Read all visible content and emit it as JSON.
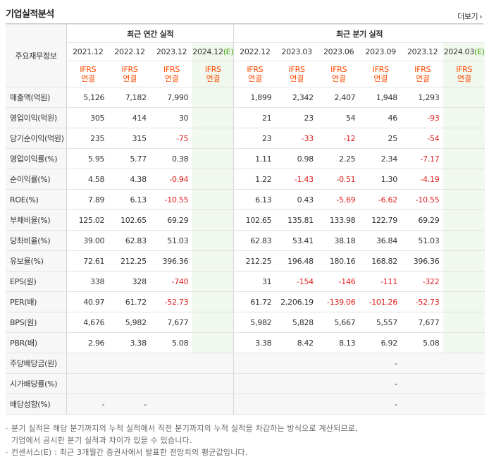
{
  "section": {
    "title": "기업실적분석",
    "more_label": "더보기"
  },
  "table": {
    "label_header": "주요재무정보",
    "annual_header": "최근 연간 실적",
    "quarterly_header": "최근 분기 실적",
    "annual_periods": [
      {
        "date": "2021.12",
        "est": ""
      },
      {
        "date": "2022.12",
        "est": ""
      },
      {
        "date": "2023.12",
        "est": ""
      },
      {
        "date": "2024.12",
        "est": "(E)"
      }
    ],
    "quarterly_periods": [
      {
        "date": "2022.12",
        "est": ""
      },
      {
        "date": "2023.03",
        "est": ""
      },
      {
        "date": "2023.06",
        "est": ""
      },
      {
        "date": "2023.09",
        "est": ""
      },
      {
        "date": "2023.12",
        "est": ""
      },
      {
        "date": "2024.03",
        "est": "(E)"
      }
    ],
    "ifrs_line1": "IFRS",
    "ifrs_line2": "연결",
    "rows": [
      {
        "label": "매출액(억원)",
        "values": [
          "5,126",
          "7,182",
          "7,990",
          "",
          "1,899",
          "2,342",
          "2,407",
          "1,948",
          "1,293",
          ""
        ]
      },
      {
        "label": "영업이익(억원)",
        "values": [
          "305",
          "414",
          "30",
          "",
          "21",
          "23",
          "54",
          "46",
          "-93",
          ""
        ]
      },
      {
        "label": "당기순이익(억원)",
        "values": [
          "235",
          "315",
          "-75",
          "",
          "23",
          "-33",
          "-12",
          "25",
          "-54",
          ""
        ]
      },
      {
        "label": "영업이익률(%)",
        "values": [
          "5.95",
          "5.77",
          "0.38",
          "",
          "1.11",
          "0.98",
          "2.25",
          "2.34",
          "-7.17",
          ""
        ]
      },
      {
        "label": "순이익률(%)",
        "values": [
          "4.58",
          "4.38",
          "-0.94",
          "",
          "1.22",
          "-1.43",
          "-0.51",
          "1.30",
          "-4.19",
          ""
        ]
      },
      {
        "label": "ROE(%)",
        "values": [
          "7.89",
          "6.13",
          "-10.55",
          "",
          "6.13",
          "0.43",
          "-5.69",
          "-6.62",
          "-10.55",
          ""
        ]
      },
      {
        "label": "부채비율(%)",
        "values": [
          "125.02",
          "102.65",
          "69.29",
          "",
          "102.65",
          "135.81",
          "133.98",
          "122.79",
          "69.29",
          ""
        ]
      },
      {
        "label": "당좌비율(%)",
        "values": [
          "39.00",
          "62.83",
          "51.03",
          "",
          "62.83",
          "53.41",
          "38.18",
          "36.84",
          "51.03",
          ""
        ]
      },
      {
        "label": "유보율(%)",
        "values": [
          "72.61",
          "212.25",
          "396.36",
          "",
          "212.25",
          "196.48",
          "180.16",
          "168.82",
          "396.36",
          ""
        ]
      },
      {
        "label": "EPS(원)",
        "values": [
          "338",
          "328",
          "-740",
          "",
          "31",
          "-154",
          "-146",
          "-111",
          "-322",
          ""
        ]
      },
      {
        "label": "PER(배)",
        "values": [
          "40.97",
          "61.72",
          "-52.73",
          "",
          "61.72",
          "2,206.19",
          "-139.06",
          "-101.26",
          "-52.73",
          ""
        ]
      },
      {
        "label": "BPS(원)",
        "values": [
          "4,676",
          "5,982",
          "7,677",
          "",
          "5,982",
          "5,828",
          "5,667",
          "5,557",
          "7,677",
          ""
        ]
      },
      {
        "label": "PBR(배)",
        "values": [
          "2.96",
          "3.38",
          "5.08",
          "",
          "3.38",
          "8.42",
          "8.13",
          "6.92",
          "5.08",
          ""
        ]
      },
      {
        "label": "주당배당금(원)",
        "values": [
          "",
          "",
          "",
          "",
          "",
          "",
          "",
          "-",
          "",
          ""
        ]
      },
      {
        "label": "시가배당률(%)",
        "values": [
          "",
          "",
          "",
          "",
          "",
          "",
          "",
          "-",
          "",
          ""
        ]
      },
      {
        "label": "배당성향(%)",
        "values": [
          "-",
          "-",
          "",
          "",
          "",
          "",
          "",
          "-",
          "",
          ""
        ]
      }
    ]
  },
  "notes": {
    "line1": "분기 실적은 해당 분기까지의 누적 실적에서 직전 분기까지의 누적 실적을 차감하는 방식으로 계산되므로,",
    "line1_cont": "기업에서 공시한 분기 실적과 차이가 있을 수 있습니다.",
    "line2": "컨센서스(E) : 최근 3개월간 증권사에서 발표한 전망치의 평균값입니다."
  },
  "colors": {
    "negative": "#e02020",
    "estimate_bg": "#f1f8ee",
    "ifrs": "#ff4a00",
    "estimate_mark": "#39a300"
  }
}
